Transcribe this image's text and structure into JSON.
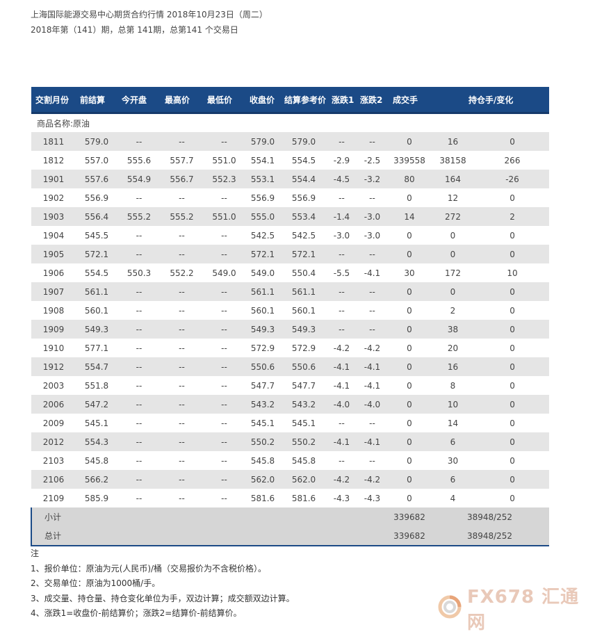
{
  "header": {
    "line1": "上海国际能源交易中心期货合约行情 2018年10月23日（周二）",
    "line2": "2018年第（141）期，总第 141期，总第141 个交易日"
  },
  "table": {
    "columns": [
      "交割月份",
      "前结算",
      "今开盘",
      "最高价",
      "最低价",
      "收盘价",
      "结算参考价",
      "涨跌1",
      "涨跌2",
      "成交手",
      "持仓手/变化"
    ],
    "category": "商品名称:原油",
    "rows": [
      [
        "1811",
        "579.0",
        "--",
        "--",
        "--",
        "579.0",
        "579.0",
        "--",
        "--",
        "0",
        "16",
        "0"
      ],
      [
        "1812",
        "557.0",
        "555.6",
        "557.7",
        "551.0",
        "554.1",
        "554.5",
        "-2.9",
        "-2.5",
        "339558",
        "38158",
        "266"
      ],
      [
        "1901",
        "557.6",
        "554.9",
        "556.7",
        "552.3",
        "553.1",
        "554.4",
        "-4.5",
        "-3.2",
        "80",
        "164",
        "-26"
      ],
      [
        "1902",
        "556.9",
        "--",
        "--",
        "--",
        "556.9",
        "556.9",
        "--",
        "--",
        "0",
        "12",
        "0"
      ],
      [
        "1903",
        "556.4",
        "555.2",
        "555.2",
        "551.0",
        "555.0",
        "553.4",
        "-1.4",
        "-3.0",
        "14",
        "272",
        "2"
      ],
      [
        "1904",
        "545.5",
        "--",
        "--",
        "--",
        "542.5",
        "542.5",
        "-3.0",
        "-3.0",
        "0",
        "0",
        "0"
      ],
      [
        "1905",
        "572.1",
        "--",
        "--",
        "--",
        "572.1",
        "572.1",
        "--",
        "--",
        "0",
        "0",
        "0"
      ],
      [
        "1906",
        "554.5",
        "550.3",
        "552.2",
        "549.0",
        "549.0",
        "550.4",
        "-5.5",
        "-4.1",
        "30",
        "172",
        "10"
      ],
      [
        "1907",
        "561.1",
        "--",
        "--",
        "--",
        "561.1",
        "561.1",
        "--",
        "--",
        "0",
        "0",
        "0"
      ],
      [
        "1908",
        "560.1",
        "--",
        "--",
        "--",
        "560.1",
        "560.1",
        "--",
        "--",
        "0",
        "2",
        "0"
      ],
      [
        "1909",
        "549.3",
        "--",
        "--",
        "--",
        "549.3",
        "549.3",
        "--",
        "--",
        "0",
        "38",
        "0"
      ],
      [
        "1910",
        "577.1",
        "--",
        "--",
        "--",
        "572.9",
        "572.9",
        "-4.2",
        "-4.2",
        "0",
        "20",
        "0"
      ],
      [
        "1912",
        "554.7",
        "--",
        "--",
        "--",
        "550.6",
        "550.6",
        "-4.1",
        "-4.1",
        "0",
        "16",
        "0"
      ],
      [
        "2003",
        "551.8",
        "--",
        "--",
        "--",
        "547.7",
        "547.7",
        "-4.1",
        "-4.1",
        "0",
        "8",
        "0"
      ],
      [
        "2006",
        "547.2",
        "--",
        "--",
        "--",
        "543.2",
        "543.2",
        "-4.0",
        "-4.0",
        "0",
        "10",
        "0"
      ],
      [
        "2009",
        "545.1",
        "--",
        "--",
        "--",
        "545.1",
        "545.1",
        "--",
        "--",
        "0",
        "14",
        "0"
      ],
      [
        "2012",
        "554.3",
        "--",
        "--",
        "--",
        "550.2",
        "550.2",
        "-4.1",
        "-4.1",
        "0",
        "6",
        "0"
      ],
      [
        "2103",
        "545.8",
        "--",
        "--",
        "--",
        "545.8",
        "545.8",
        "--",
        "--",
        "0",
        "30",
        "0"
      ],
      [
        "2106",
        "566.2",
        "--",
        "--",
        "--",
        "562.0",
        "562.0",
        "-4.2",
        "-4.2",
        "0",
        "6",
        "0"
      ],
      [
        "2109",
        "585.9",
        "--",
        "--",
        "--",
        "581.6",
        "581.6",
        "-4.3",
        "-4.3",
        "0",
        "4",
        "0"
      ]
    ],
    "totals": [
      {
        "label": "小计",
        "volume": "339682",
        "open_interest": "38948/252"
      },
      {
        "label": "总计",
        "volume": "339682",
        "open_interest": "38948/252"
      }
    ]
  },
  "notes": [
    "注",
    "1、报价单位：原油为元(人民币)/桶（交易报价为不含税价格）。",
    "2、交易单位：原油为1000桶/手。",
    "3、成交量、持仓量、持仓变化单位为手，双边计算；成交额双边计算。",
    "4、涨跌1=收盘价-前结算价；涨跌2=结算价-前结算价。"
  ],
  "watermark": {
    "text": "FX678 汇通网",
    "accent": "#e9c9b9",
    "icon": "logo-icon"
  }
}
